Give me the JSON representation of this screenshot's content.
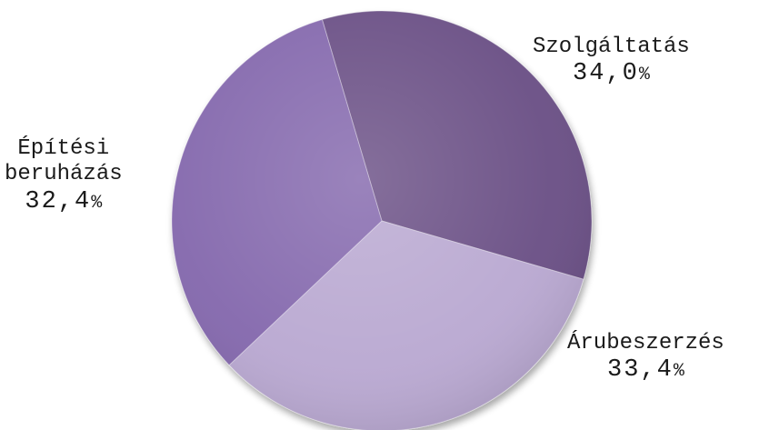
{
  "chart_data": {
    "type": "pie",
    "title": "",
    "slices": [
      {
        "label": "Szolgáltatás",
        "value": 34.0,
        "display": "34,0",
        "unit": "%",
        "color": "#6a5085"
      },
      {
        "label": "Árubeszerzés",
        "value": 33.4,
        "display": "33,4",
        "unit": "%",
        "color": "#b9a8d1"
      },
      {
        "label": "Építési beruházás",
        "label_lines": [
          "Építési",
          "beruházás"
        ],
        "value": 32.4,
        "display": "32,4",
        "unit": "%",
        "color": "#8467ad"
      }
    ],
    "legend": "none",
    "start_angle_deg": -106.5
  }
}
